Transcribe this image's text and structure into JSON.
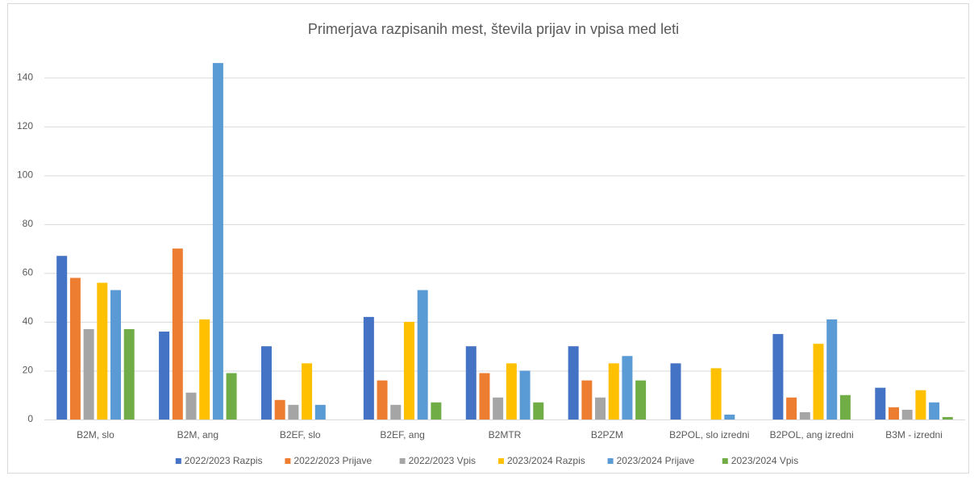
{
  "chart_data": {
    "type": "bar",
    "title": "Primerjava razpisanih mest, števila prijav in vpisa med leti",
    "categories": [
      "B2M, slo",
      "B2M, ang",
      "B2EF, slo",
      "B2EF, ang",
      "B2MTR",
      "B2PZM",
      "B2POL, slo izredni",
      "B2POL, ang izredni",
      "B3M - izredni"
    ],
    "series": [
      {
        "name": "2022/2023 Razpis",
        "color": "#4472c4",
        "values": [
          67,
          36,
          30,
          42,
          30,
          30,
          23,
          35,
          13
        ]
      },
      {
        "name": "2022/2023 Prijave",
        "color": "#ed7d31",
        "values": [
          58,
          70,
          8,
          16,
          19,
          16,
          0,
          9,
          5
        ]
      },
      {
        "name": "2022/2023 Vpis",
        "color": "#a5a5a5",
        "values": [
          37,
          11,
          6,
          6,
          9,
          9,
          0,
          3,
          4
        ]
      },
      {
        "name": "2023/2024 Razpis",
        "color": "#ffc000",
        "values": [
          56,
          41,
          23,
          40,
          23,
          23,
          21,
          31,
          12
        ]
      },
      {
        "name": "2023/2024 Prijave",
        "color": "#5b9bd5",
        "values": [
          53,
          146,
          6,
          53,
          20,
          26,
          2,
          41,
          7
        ]
      },
      {
        "name": "2023/2024 Vpis",
        "color": "#70ad47",
        "values": [
          37,
          19,
          0,
          7,
          7,
          16,
          0,
          10,
          1
        ]
      }
    ],
    "ylim": [
      0,
      150
    ],
    "yticks": [
      0,
      20,
      40,
      60,
      80,
      100,
      120,
      140
    ],
    "grid": true,
    "legend": "bottom"
  }
}
